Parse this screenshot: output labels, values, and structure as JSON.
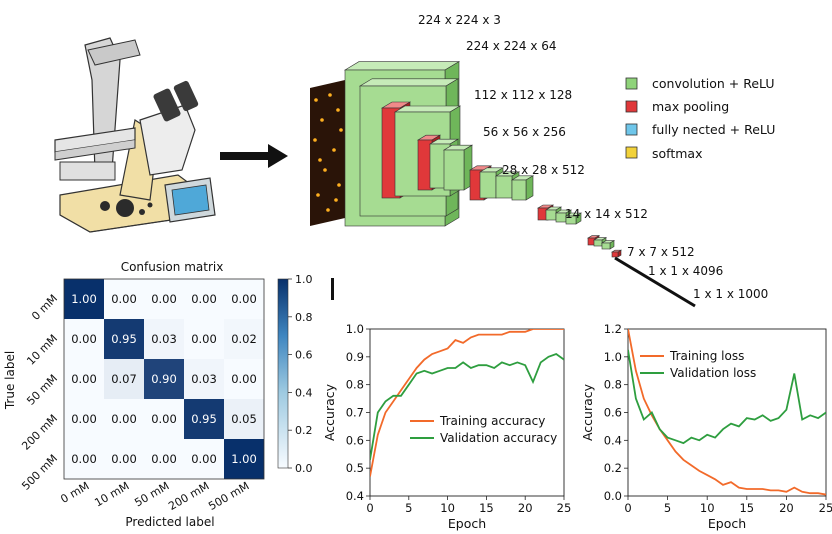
{
  "cnn": {
    "layer_sizes": [
      "224 x 224 x 3",
      "224 x 224 x 64",
      "112 x 112 x 128",
      "56 x 56 x 256",
      "28 x 28 x 512",
      "14 x 14 x 512",
      "7 x 7 x 512",
      "1 x 1 x 4096",
      "1 x 1 x 1000"
    ],
    "legend": [
      {
        "label": "convolution + ReLU",
        "color": "#8fd37a"
      },
      {
        "label": "max pooling",
        "color": "#e0383a"
      },
      {
        "label": "fully nected + ReLU",
        "color": "#6fc6ea"
      },
      {
        "label": "softmax",
        "color": "#f2d23a"
      }
    ]
  },
  "confusion": {
    "title": "Confusion matrix",
    "xlabel": "Predicted label",
    "ylabel": "True label",
    "classes": [
      "0 mM",
      "10 mM",
      "50 mM",
      "200 mM",
      "500 mM"
    ],
    "matrix": [
      [
        "1.00",
        "0.00",
        "0.00",
        "0.00",
        "0.00"
      ],
      [
        "0.00",
        "0.95",
        "0.03",
        "0.00",
        "0.02"
      ],
      [
        "0.00",
        "0.07",
        "0.90",
        "0.03",
        "0.00"
      ],
      [
        "0.00",
        "0.00",
        "0.00",
        "0.95",
        "0.05"
      ],
      [
        "0.00",
        "0.00",
        "0.00",
        "0.00",
        "1.00"
      ]
    ],
    "colorbar_ticks": [
      "0.0",
      "0.2",
      "0.4",
      "0.6",
      "0.8",
      "1.0"
    ]
  },
  "chart_data": [
    {
      "type": "line",
      "xlabel": "Epoch",
      "ylabel": "Accuracy",
      "xlim": [
        0,
        25
      ],
      "ylim": [
        0.4,
        1.0
      ],
      "xticks": [
        "0",
        "5",
        "10",
        "15",
        "20",
        "25"
      ],
      "yticks": [
        "0.4",
        "0.5",
        "0.6",
        "0.7",
        "0.8",
        "0.9",
        "1.0"
      ],
      "x": [
        0,
        1,
        2,
        3,
        4,
        5,
        6,
        7,
        8,
        9,
        10,
        11,
        12,
        13,
        14,
        15,
        16,
        17,
        18,
        19,
        20,
        21,
        22,
        23,
        24,
        25
      ],
      "series": [
        {
          "name": "Training accuracy",
          "color": "#f26a2a",
          "values": [
            0.47,
            0.62,
            0.7,
            0.74,
            0.78,
            0.82,
            0.86,
            0.89,
            0.91,
            0.92,
            0.93,
            0.96,
            0.95,
            0.97,
            0.98,
            0.98,
            0.98,
            0.98,
            0.99,
            0.99,
            0.99,
            1.0,
            1.0,
            1.0,
            1.0,
            1.0
          ]
        },
        {
          "name": "Validation accuracy",
          "color": "#2e9e3f",
          "values": [
            0.53,
            0.7,
            0.74,
            0.76,
            0.76,
            0.8,
            0.84,
            0.85,
            0.84,
            0.85,
            0.86,
            0.86,
            0.88,
            0.86,
            0.87,
            0.87,
            0.86,
            0.88,
            0.87,
            0.88,
            0.87,
            0.81,
            0.88,
            0.9,
            0.91,
            0.89
          ]
        }
      ],
      "legend_position": "lower-right"
    },
    {
      "type": "line",
      "xlabel": "Epoch",
      "ylabel": "Accuracy",
      "xlim": [
        0,
        25
      ],
      "ylim": [
        0,
        1.2
      ],
      "xticks": [
        "0",
        "5",
        "10",
        "15",
        "20",
        "25"
      ],
      "yticks": [
        "0.0",
        "0.2",
        "0.4",
        "0.6",
        "0.8",
        "1.0",
        "1.2"
      ],
      "x": [
        0,
        1,
        2,
        3,
        4,
        5,
        6,
        7,
        8,
        9,
        10,
        11,
        12,
        13,
        14,
        15,
        16,
        17,
        18,
        19,
        20,
        21,
        22,
        23,
        24,
        25
      ],
      "series": [
        {
          "name": "Training loss",
          "color": "#f26a2a",
          "values": [
            1.2,
            0.9,
            0.7,
            0.58,
            0.48,
            0.4,
            0.32,
            0.26,
            0.22,
            0.18,
            0.15,
            0.12,
            0.08,
            0.1,
            0.06,
            0.05,
            0.05,
            0.05,
            0.04,
            0.04,
            0.03,
            0.06,
            0.03,
            0.02,
            0.02,
            0.01
          ]
        },
        {
          "name": "Validation loss",
          "color": "#2e9e3f",
          "values": [
            1.05,
            0.7,
            0.55,
            0.6,
            0.48,
            0.42,
            0.4,
            0.38,
            0.42,
            0.4,
            0.44,
            0.42,
            0.48,
            0.52,
            0.5,
            0.56,
            0.55,
            0.58,
            0.54,
            0.56,
            0.62,
            0.88,
            0.55,
            0.58,
            0.56,
            0.6
          ]
        }
      ],
      "legend_position": "upper-right"
    }
  ]
}
